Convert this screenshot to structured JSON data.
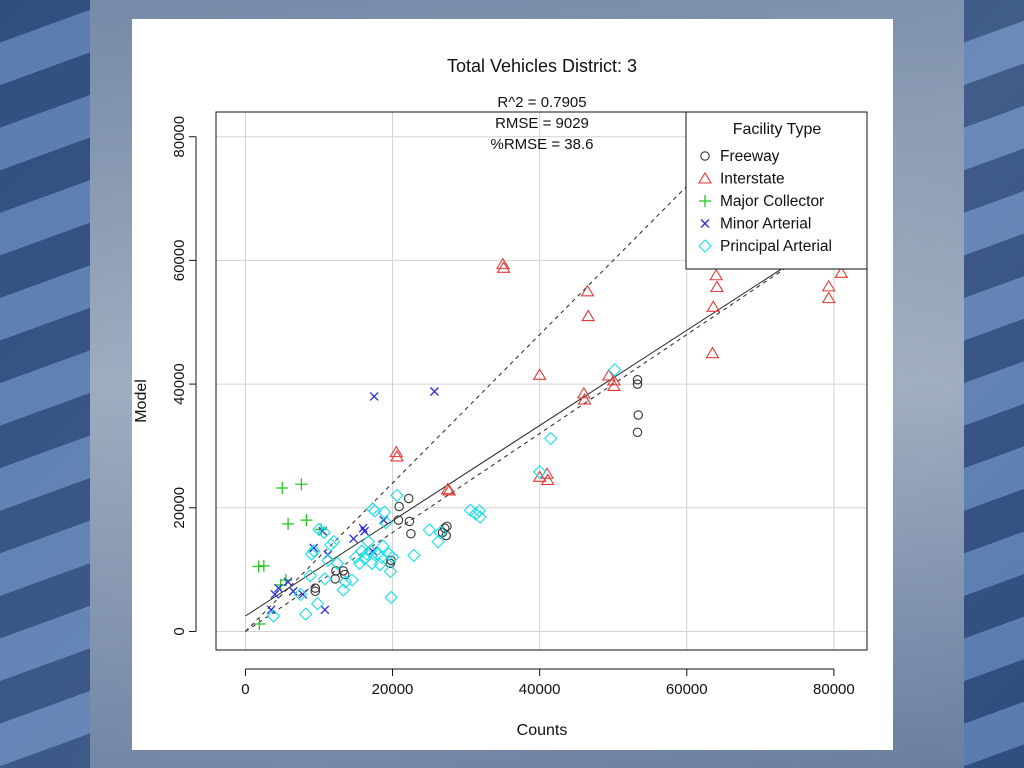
{
  "chart_data": {
    "type": "scatter",
    "title": "Total Vehicles District: 3",
    "stats": [
      "R^2 = 0.7905",
      "RMSE = 9029",
      "%RMSE = 38.6"
    ],
    "xlabel": "Counts",
    "ylabel": "Model",
    "xlim": [
      -4000,
      84500
    ],
    "ylim": [
      -3000,
      84000
    ],
    "xticks": [
      0,
      20000,
      40000,
      60000,
      80000
    ],
    "yticks": [
      0,
      20000,
      40000,
      60000,
      80000
    ],
    "grid": true,
    "legend_title": "Facility Type",
    "legend_position": "top-right",
    "reference_lines": [
      {
        "type": "dashed",
        "slope": 1.2
      },
      {
        "type": "dashed",
        "slope": 0.8
      },
      {
        "type": "solid",
        "slope": 0.77,
        "intercept": 2500
      }
    ],
    "series": [
      {
        "name": "Freeway",
        "color": "#333333",
        "marker": "circle",
        "points": [
          [
            9500,
            6500
          ],
          [
            9500,
            7000
          ],
          [
            12200,
            8500
          ],
          [
            12300,
            9800
          ],
          [
            13300,
            9800
          ],
          [
            13500,
            9200
          ],
          [
            19700,
            11000
          ],
          [
            19800,
            11500
          ],
          [
            20800,
            18000
          ],
          [
            20900,
            20200
          ],
          [
            22300,
            17800
          ],
          [
            22500,
            15800
          ],
          [
            22200,
            21500
          ],
          [
            26800,
            16000
          ],
          [
            27100,
            16700
          ],
          [
            27400,
            17000
          ],
          [
            27300,
            15500
          ],
          [
            53300,
            40700
          ],
          [
            53300,
            40000
          ],
          [
            53400,
            35000
          ],
          [
            53300,
            32200
          ]
        ]
      },
      {
        "name": "Interstate",
        "color": "#e53935",
        "marker": "triangle",
        "points": [
          [
            20500,
            29000
          ],
          [
            20600,
            28300
          ],
          [
            27500,
            23000
          ],
          [
            27700,
            22800
          ],
          [
            35000,
            59400
          ],
          [
            35100,
            58800
          ],
          [
            40000,
            41500
          ],
          [
            40000,
            25000
          ],
          [
            41000,
            25500
          ],
          [
            41100,
            24500
          ],
          [
            46000,
            38500
          ],
          [
            46100,
            37500
          ],
          [
            46500,
            55000
          ],
          [
            46600,
            51000
          ],
          [
            49400,
            41400
          ],
          [
            50100,
            40600
          ],
          [
            50100,
            39700
          ],
          [
            63500,
            45000
          ],
          [
            63600,
            52500
          ],
          [
            64000,
            57600
          ],
          [
            64100,
            55700
          ],
          [
            79300,
            55800
          ],
          [
            79300,
            53900
          ],
          [
            81000,
            58000
          ]
        ]
      },
      {
        "name": "Major Collector",
        "color": "#22c322",
        "marker": "plus",
        "points": [
          [
            1800,
            10500
          ],
          [
            2500,
            10600
          ],
          [
            1900,
            1200
          ],
          [
            4800,
            7500
          ],
          [
            5000,
            23200
          ],
          [
            5800,
            17400
          ],
          [
            7600,
            23800
          ],
          [
            8300,
            18000
          ],
          [
            5500,
            8300
          ],
          [
            10300,
            16500
          ]
        ]
      },
      {
        "name": "Minor Arterial",
        "color": "#2a2ae0",
        "marker": "x",
        "points": [
          [
            3500,
            3500
          ],
          [
            4000,
            6000
          ],
          [
            4500,
            7000
          ],
          [
            5800,
            8000
          ],
          [
            6500,
            6500
          ],
          [
            7800,
            6000
          ],
          [
            9300,
            13500
          ],
          [
            10500,
            16200
          ],
          [
            10800,
            3500
          ],
          [
            11200,
            12400
          ],
          [
            14700,
            15000
          ],
          [
            16000,
            16700
          ],
          [
            16200,
            16200
          ],
          [
            17300,
            13000
          ],
          [
            17500,
            38000
          ],
          [
            18800,
            18000
          ],
          [
            25700,
            38800
          ]
        ]
      },
      {
        "name": "Principal Arterial",
        "color": "#16e0e6",
        "marker": "diamond",
        "points": [
          [
            3800,
            2500
          ],
          [
            7500,
            6000
          ],
          [
            8200,
            2800
          ],
          [
            8800,
            9000
          ],
          [
            9000,
            12500
          ],
          [
            9300,
            13000
          ],
          [
            9800,
            4500
          ],
          [
            10000,
            16500
          ],
          [
            10700,
            16000
          ],
          [
            10800,
            8500
          ],
          [
            11200,
            11500
          ],
          [
            11600,
            14000
          ],
          [
            12000,
            14500
          ],
          [
            12500,
            11000
          ],
          [
            13300,
            6700
          ],
          [
            13600,
            8000
          ],
          [
            14500,
            8300
          ],
          [
            15000,
            12000
          ],
          [
            15500,
            11000
          ],
          [
            15800,
            13000
          ],
          [
            16200,
            11800
          ],
          [
            16500,
            12500
          ],
          [
            16700,
            14500
          ],
          [
            17000,
            13000
          ],
          [
            17200,
            11000
          ],
          [
            17300,
            19800
          ],
          [
            17600,
            19500
          ],
          [
            17900,
            12500
          ],
          [
            18300,
            10800
          ],
          [
            18500,
            12000
          ],
          [
            18700,
            13800
          ],
          [
            18900,
            19300
          ],
          [
            19100,
            17600
          ],
          [
            19500,
            12500
          ],
          [
            19700,
            9700
          ],
          [
            19800,
            5500
          ],
          [
            20000,
            12000
          ],
          [
            20600,
            22000
          ],
          [
            22900,
            12300
          ],
          [
            25000,
            16400
          ],
          [
            26200,
            14500
          ],
          [
            26500,
            16000
          ],
          [
            30600,
            19600
          ],
          [
            31300,
            19000
          ],
          [
            31800,
            19500
          ],
          [
            31900,
            18500
          ],
          [
            40000,
            25800
          ],
          [
            41500,
            31200
          ],
          [
            50200,
            42300
          ]
        ]
      }
    ]
  }
}
